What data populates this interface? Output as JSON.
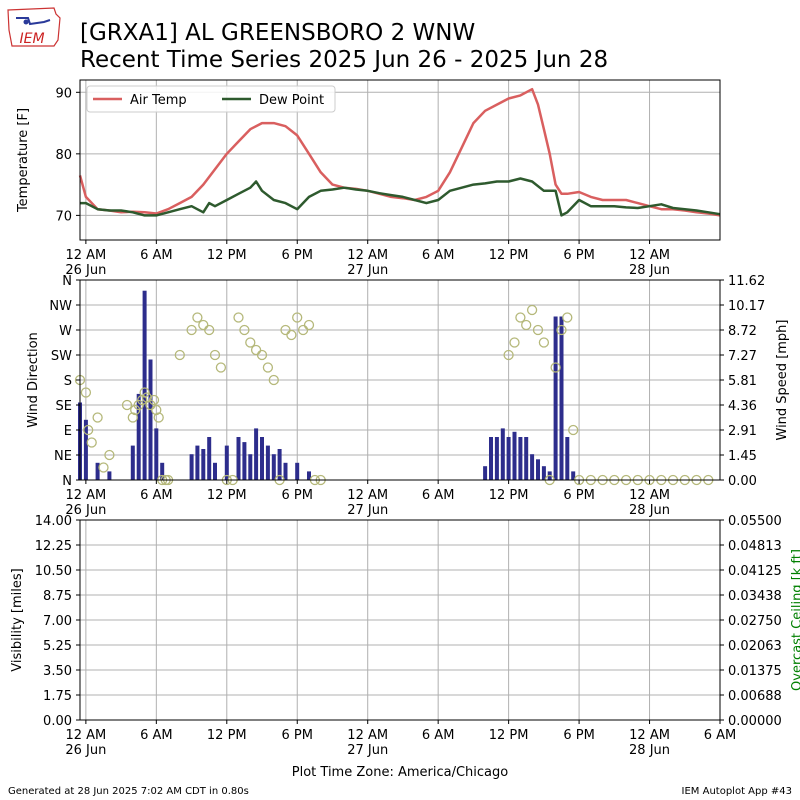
{
  "header": {
    "logo_text": "IEM",
    "title_line1": "[GRXA1] AL GREENSBORO 2 WNW",
    "title_line2": "Recent Time Series 2025 Jun 26 - 2025 Jun 28"
  },
  "footer": {
    "generated": "Generated at 28 Jun 2025 7:02 AM CDT in 0.80s",
    "app": "IEM Autoplot App #43"
  },
  "colors": {
    "air_temp": "#d95f5f",
    "dew_point": "#2e5a2e",
    "wind_speed_bar": "#2d2d8c",
    "wind_dir_marker": "#b5b87a",
    "ceiling_axis": "#008000",
    "grid": "#b0b0b0"
  },
  "chart_data": [
    {
      "type": "line",
      "panel": "temperature",
      "ylabel": "Temperature [F]",
      "ylim": [
        66,
        92
      ],
      "yticks": [
        70,
        80,
        90
      ],
      "xlim_hours": [
        -0.5,
        54
      ],
      "xticks": [
        {
          "h": 0,
          "l1": "12 AM",
          "l2": "26 Jun"
        },
        {
          "h": 6,
          "l1": "6 AM",
          "l2": ""
        },
        {
          "h": 12,
          "l1": "12 PM",
          "l2": ""
        },
        {
          "h": 18,
          "l1": "6 PM",
          "l2": ""
        },
        {
          "h": 24,
          "l1": "12 AM",
          "l2": "27 Jun"
        },
        {
          "h": 30,
          "l1": "6 AM",
          "l2": ""
        },
        {
          "h": 36,
          "l1": "12 PM",
          "l2": ""
        },
        {
          "h": 42,
          "l1": "6 PM",
          "l2": ""
        },
        {
          "h": 48,
          "l1": "12 AM",
          "l2": "28 Jun"
        }
      ],
      "grid": true,
      "legend_position": "top-left",
      "series": [
        {
          "name": "Air Temp",
          "color": "#d95f5f",
          "x": [
            -0.5,
            0,
            1,
            2,
            3,
            4,
            5,
            6,
            7,
            8,
            9,
            10,
            11,
            12,
            13,
            14,
            15,
            16,
            17,
            18,
            19,
            20,
            21,
            22,
            23,
            24,
            25,
            26,
            27,
            28,
            29,
            30,
            31,
            32,
            33,
            34,
            35,
            36,
            37,
            38,
            38.5,
            39,
            39.5,
            40,
            40.5,
            41,
            42,
            43,
            44,
            45,
            46,
            47,
            48,
            49,
            50,
            51,
            52,
            53,
            54
          ],
          "y": [
            76.5,
            73,
            71,
            70.8,
            70.5,
            70.6,
            70.5,
            70.3,
            71,
            72,
            73,
            75,
            77.5,
            80,
            82,
            84,
            85,
            85,
            84.5,
            83,
            80,
            77,
            75,
            74.5,
            74.3,
            74,
            73.5,
            73,
            72.8,
            72.5,
            73,
            74,
            77,
            81,
            85,
            87,
            88,
            89,
            89.5,
            90.5,
            88,
            84,
            80,
            75,
            73.5,
            73.5,
            73.8,
            73,
            72.5,
            72.5,
            72.5,
            72,
            71.5,
            71,
            71,
            70.8,
            70.5,
            70.3,
            70
          ]
        },
        {
          "name": "Dew Point",
          "color": "#2e5a2e",
          "x": [
            -0.5,
            0,
            1,
            2,
            3,
            4,
            5,
            6,
            7,
            8,
            9,
            10,
            10.5,
            11,
            12,
            13,
            14,
            14.5,
            15,
            16,
            17,
            18,
            19,
            20,
            21,
            22,
            23,
            24,
            25,
            26,
            27,
            28,
            29,
            30,
            31,
            32,
            33,
            34,
            35,
            36,
            37,
            38,
            39,
            40,
            40.5,
            41,
            42,
            43,
            44,
            45,
            46,
            47,
            48,
            49,
            50,
            51,
            52,
            53,
            54
          ],
          "y": [
            72,
            72,
            71,
            70.8,
            70.8,
            70.5,
            70,
            70,
            70.5,
            71,
            71.5,
            70.5,
            72,
            71.5,
            72.5,
            73.5,
            74.5,
            75.5,
            74,
            72.5,
            72,
            71,
            73,
            74,
            74.2,
            74.5,
            74.2,
            74,
            73.6,
            73.3,
            73,
            72.5,
            72,
            72.5,
            74,
            74.5,
            75,
            75.2,
            75.5,
            75.5,
            76,
            75.5,
            74,
            74,
            70,
            70.5,
            72.5,
            71.5,
            71.5,
            71.5,
            71.3,
            71.2,
            71.5,
            71.8,
            71.2,
            71,
            70.8,
            70.5,
            70.2
          ]
        }
      ]
    },
    {
      "type": "bar",
      "panel": "wind",
      "ylabel": "Wind Direction",
      "y2label": "Wind Speed [mph]",
      "dir_ticks": [
        "N",
        "NE",
        "E",
        "SE",
        "S",
        "SW",
        "W",
        "NW",
        "N"
      ],
      "speed_ticks": [
        "0.00",
        "1.45",
        "2.91",
        "4.36",
        "5.81",
        "7.27",
        "8.72",
        "10.17",
        "11.62"
      ],
      "speed_max": 11.62,
      "xlim_hours": [
        -0.5,
        54
      ],
      "grid": true,
      "speed_bars": {
        "x": [
          -0.5,
          0,
          1,
          2,
          4,
          4.5,
          5,
          5.5,
          6,
          6.5,
          9,
          9.5,
          10,
          10.5,
          11,
          12,
          13,
          13.5,
          14,
          14.5,
          15,
          15.5,
          16,
          16.5,
          17,
          18,
          19,
          34,
          34.5,
          35,
          35.5,
          36,
          36.5,
          37,
          37.5,
          38,
          38.5,
          39,
          39.5,
          40,
          40.5,
          41,
          41.5
        ],
        "y": [
          4.5,
          3.5,
          1,
          0.5,
          2,
          5,
          11,
          7,
          3,
          1,
          1.5,
          2,
          1.8,
          2.5,
          1,
          2,
          2.5,
          2.2,
          1.5,
          3,
          2.5,
          2,
          1.5,
          1.8,
          1,
          1,
          0.5,
          0.8,
          2.5,
          2.5,
          3,
          2.5,
          2.8,
          2.5,
          2.5,
          1.5,
          1.2,
          0.8,
          0.5,
          9.5,
          9.5,
          2.5,
          0.5
        ]
      },
      "direction_points": {
        "x": [
          -0.5,
          0,
          0.2,
          0.5,
          1,
          1.5,
          2,
          3.5,
          4,
          4.2,
          4.5,
          4.8,
          5,
          5.2,
          5.5,
          5.8,
          6,
          6.2,
          6.5,
          6.8,
          7,
          8,
          9,
          9.5,
          10,
          10.5,
          11,
          11.5,
          12,
          12.5,
          13,
          13.5,
          14,
          14.5,
          15,
          15.5,
          16,
          16.5,
          17,
          17.5,
          18,
          18.5,
          19,
          19.5,
          20,
          36,
          36.5,
          37,
          37.5,
          38,
          38.5,
          39,
          39.5,
          40,
          40.5,
          41,
          41.5,
          42,
          43,
          44,
          45,
          46,
          47,
          48,
          49,
          50,
          51,
          52,
          53
        ],
        "y": [
          4,
          3.5,
          2,
          1.5,
          2.5,
          0.5,
          1,
          3,
          2.5,
          2.8,
          3,
          3.2,
          3.5,
          3.3,
          3,
          3.2,
          2.8,
          2.5,
          0,
          0,
          0,
          5,
          6,
          6.5,
          6.2,
          6,
          5,
          4.5,
          0,
          0,
          6.5,
          6,
          5.5,
          5.2,
          5,
          4.5,
          4,
          0,
          6,
          5.8,
          6.5,
          6,
          6.2,
          0,
          0,
          5,
          5.5,
          6.5,
          6.2,
          6.8,
          6,
          5.5,
          0,
          4.5,
          6,
          6.5,
          2,
          0,
          0,
          0,
          0,
          0,
          0,
          0,
          0,
          0,
          0,
          0,
          0
        ]
      }
    },
    {
      "type": "line",
      "panel": "visibility",
      "ylabel": "Visibility [miles]",
      "y2label": "Overcast Ceiling [k ft]",
      "yticks": [
        "0.00",
        "1.75",
        "3.50",
        "5.25",
        "7.00",
        "8.75",
        "10.50",
        "12.25",
        "14.00"
      ],
      "y2ticks": [
        "0.00000",
        "0.00688",
        "0.01375",
        "0.02063",
        "0.02750",
        "0.03438",
        "0.04125",
        "0.04813",
        "0.05500"
      ],
      "xticks": [
        {
          "h": 0,
          "l1": "12 AM",
          "l2": "26 Jun"
        },
        {
          "h": 6,
          "l1": "6 AM",
          "l2": ""
        },
        {
          "h": 12,
          "l1": "12 PM",
          "l2": ""
        },
        {
          "h": 18,
          "l1": "6 PM",
          "l2": ""
        },
        {
          "h": 24,
          "l1": "12 AM",
          "l2": "27 Jun"
        },
        {
          "h": 30,
          "l1": "6 AM",
          "l2": ""
        },
        {
          "h": 36,
          "l1": "12 PM",
          "l2": ""
        },
        {
          "h": 42,
          "l1": "6 PM",
          "l2": ""
        },
        {
          "h": 48,
          "l1": "12 AM",
          "l2": "28 Jun"
        },
        {
          "h": 54,
          "l1": "6 AM",
          "l2": ""
        }
      ],
      "xlabel": "Plot Time Zone: America/Chicago",
      "grid": true
    }
  ]
}
